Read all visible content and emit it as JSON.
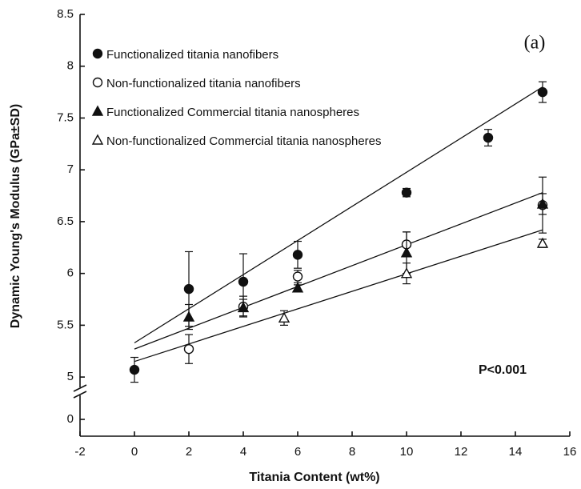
{
  "chart_data": {
    "type": "scatter",
    "xlabel": "Titania Content (wt%)",
    "ylabel": "Dynamic Young's Modulus (GPa±SD)",
    "xlim": [
      -2,
      16
    ],
    "xticks": [
      -2,
      0,
      2,
      4,
      6,
      8,
      10,
      12,
      14,
      16
    ],
    "ylim": [
      0,
      8.5
    ],
    "ybreak": 4.8,
    "yticks": [
      0,
      5,
      5.5,
      6,
      6.5,
      7,
      7.5,
      8,
      8.5
    ],
    "annotations": [
      "(a)",
      "P<0.001"
    ],
    "series": [
      {
        "name": "Functionalized titania nanofibers",
        "marker": "filled-circle",
        "color": "#111",
        "x": [
          0,
          2,
          4,
          6,
          10,
          13,
          15
        ],
        "values": [
          5.07,
          5.85,
          5.92,
          6.18,
          6.78,
          7.31,
          7.75
        ],
        "errors": [
          0.12,
          0.36,
          0.27,
          0.13,
          0.04,
          0.08,
          0.1
        ]
      },
      {
        "name": "Non-functionalized titania nanofibers",
        "marker": "open-circle",
        "color": "#111",
        "x": [
          2,
          4,
          6,
          10,
          15
        ],
        "values": [
          5.27,
          5.68,
          5.97,
          6.28,
          6.66
        ],
        "errors": [
          0.14,
          0.1,
          0.06,
          0.12,
          0.27
        ]
      },
      {
        "name": "Functionalized Commercial titania nanospheres",
        "marker": "filled-triangle",
        "color": "#111",
        "x": [
          2,
          4,
          6,
          10,
          15
        ],
        "values": [
          5.58,
          5.67,
          5.86,
          6.2,
          6.67
        ],
        "errors": [
          0.12,
          0.08,
          0.03,
          0.2,
          0.1
        ]
      },
      {
        "name": "Non-functionalized Commercial titania nanospheres",
        "marker": "open-triangle",
        "color": "#111",
        "x": [
          5.5,
          10,
          15
        ],
        "values": [
          5.57,
          6.0,
          6.29
        ],
        "errors": [
          0.07,
          0.1,
          0.04
        ]
      }
    ],
    "trend_lines": [
      {
        "x": [
          0,
          15
        ],
        "values": [
          5.33,
          7.8
        ]
      },
      {
        "x": [
          0,
          15
        ],
        "values": [
          5.27,
          6.78
        ]
      },
      {
        "x": [
          0,
          15
        ],
        "values": [
          5.15,
          6.42
        ]
      }
    ]
  }
}
